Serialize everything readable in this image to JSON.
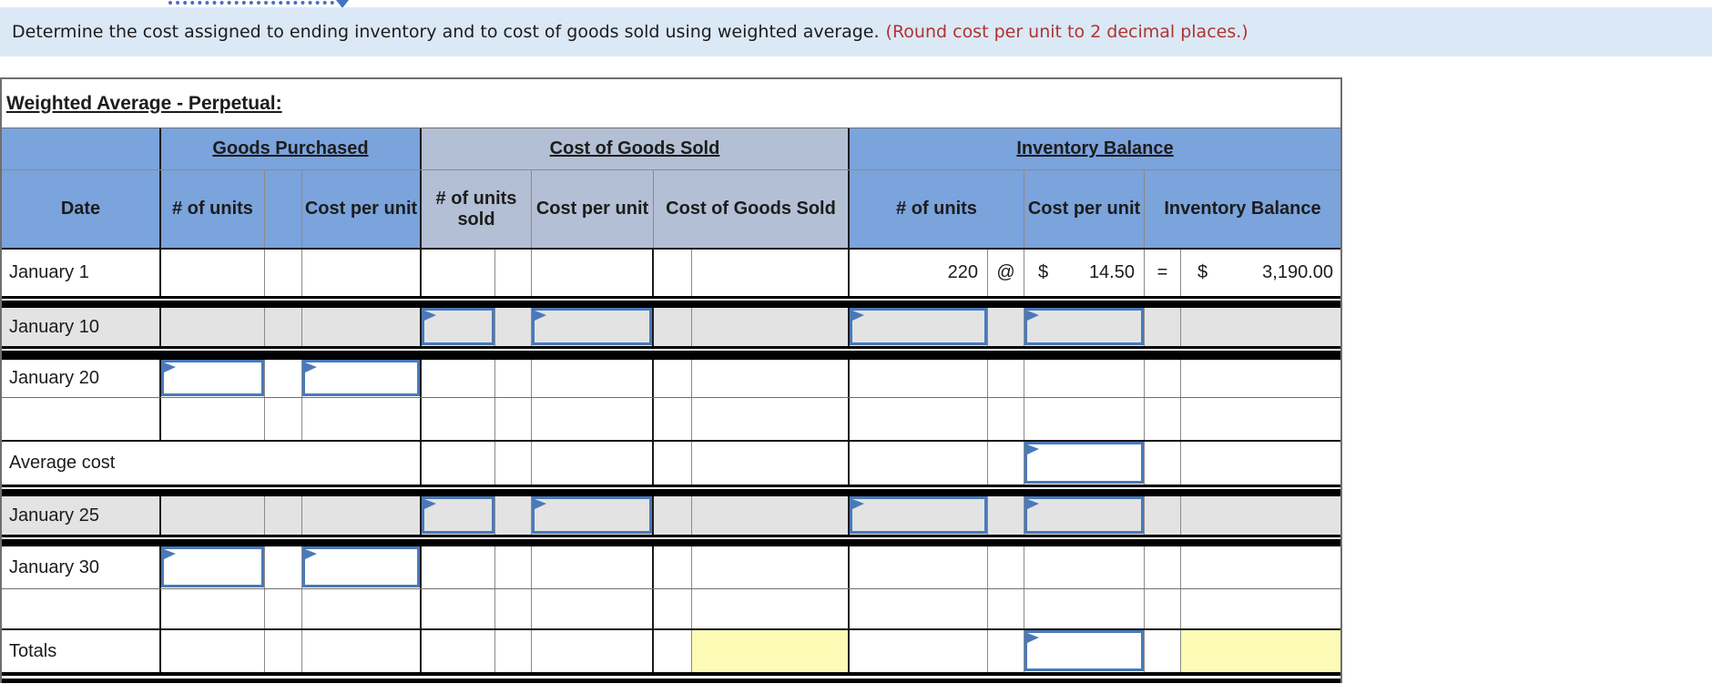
{
  "banner": {
    "instruction": "Determine the cost assigned to ending inventory and to cost of goods sold using weighted average.",
    "rounding_note": "(Round cost per unit to 2 decimal places.)"
  },
  "table": {
    "title": "Weighted Average - Perpetual:",
    "group_headers": {
      "goods_purchased": "Goods Purchased",
      "cost_of_goods_sold": "Cost of Goods Sold",
      "inventory_balance": "Inventory Balance"
    },
    "column_headers": {
      "date": "Date",
      "gp_units": "# of units",
      "gp_cost": "Cost per unit",
      "cogs_units": "# of units sold",
      "cogs_cost": "Cost per unit",
      "cogs_total": "Cost of Goods Sold",
      "ib_units": "# of units",
      "ib_cost": "Cost per unit",
      "ib_total": "Inventory Balance"
    },
    "symbols": {
      "at": "@",
      "equals": "=",
      "currency": "$"
    },
    "rows": {
      "jan1": {
        "date": "January 1",
        "ib_units": "220",
        "ib_cost": "14.50",
        "ib_total": "3,190.00"
      },
      "jan10": {
        "date": "January 10"
      },
      "jan20": {
        "date": "January 20"
      },
      "avg": {
        "date": "Average cost"
      },
      "jan25": {
        "date": "January 25"
      },
      "jan30": {
        "date": "January 30"
      },
      "totals": {
        "date": "Totals"
      }
    }
  },
  "colors": {
    "banner_bg": "#dbe8f6",
    "note_red": "#ae3431",
    "header_blue": "#7ba3dc",
    "header_gray_blue": "#b3bfd4",
    "shaded_row_gray": "#e3e3e3",
    "highlight_yellow": "#fcfbb6",
    "input_border_blue": "#4a79b9"
  }
}
